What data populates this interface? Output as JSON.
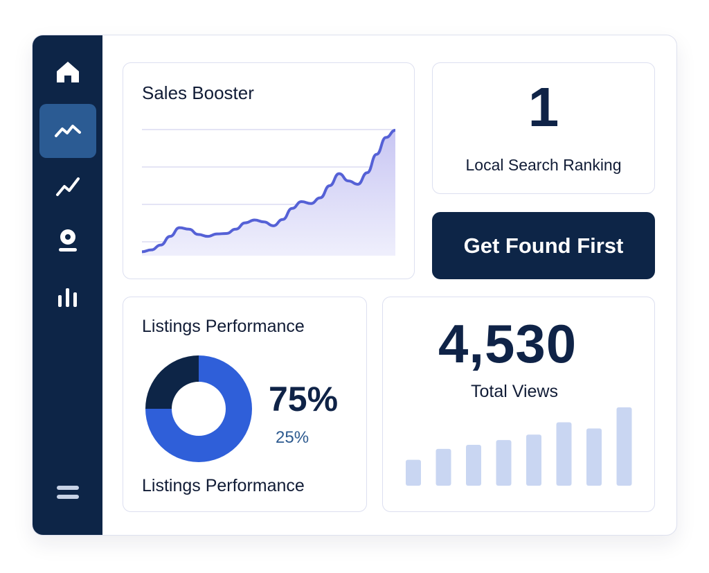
{
  "sidebar": {
    "items": [
      {
        "icon": "home-icon",
        "active": false
      },
      {
        "icon": "trend-icon",
        "active": true
      },
      {
        "icon": "trend-line-icon",
        "active": false
      },
      {
        "icon": "location-pin-icon",
        "active": false
      },
      {
        "icon": "bar-chart-icon",
        "active": false
      }
    ],
    "menu_icon": "menu-icon"
  },
  "sales": {
    "title": "Sales Booster"
  },
  "ranking": {
    "value": "1",
    "label": "Local Search Ranking"
  },
  "cta": {
    "label": "Get Found First"
  },
  "listings": {
    "title": "Listings Performance",
    "primary_percent": "75%",
    "secondary_percent": "25%",
    "footer": "Listings Performance"
  },
  "views": {
    "total": "4,530",
    "label": "Total Views"
  },
  "colors": {
    "navy": "#0d2547",
    "active_nav": "#2b5b93",
    "line": "#5561d6",
    "area": "#d9d8f7",
    "donut_blue": "#2f5fd9",
    "bars": "#c9d6f2"
  },
  "chart_data": [
    {
      "type": "area",
      "title": "Sales Booster",
      "y": [
        8,
        12,
        22,
        40,
        58,
        55,
        44,
        40,
        45,
        46,
        55,
        68,
        74,
        70,
        62,
        75,
        98,
        112,
        108,
        120,
        145,
        170,
        155,
        148,
        172,
        210,
        245,
        260
      ],
      "ylim": [
        0,
        270
      ],
      "grid": true
    },
    {
      "type": "pie",
      "title": "Listings Performance",
      "categories": [
        "75%",
        "25%"
      ],
      "values": [
        75,
        25
      ]
    },
    {
      "type": "bar",
      "title": "Total Views",
      "values": [
        38,
        54,
        60,
        67,
        75,
        93,
        84,
        115
      ],
      "ylim": [
        0,
        120
      ]
    }
  ]
}
